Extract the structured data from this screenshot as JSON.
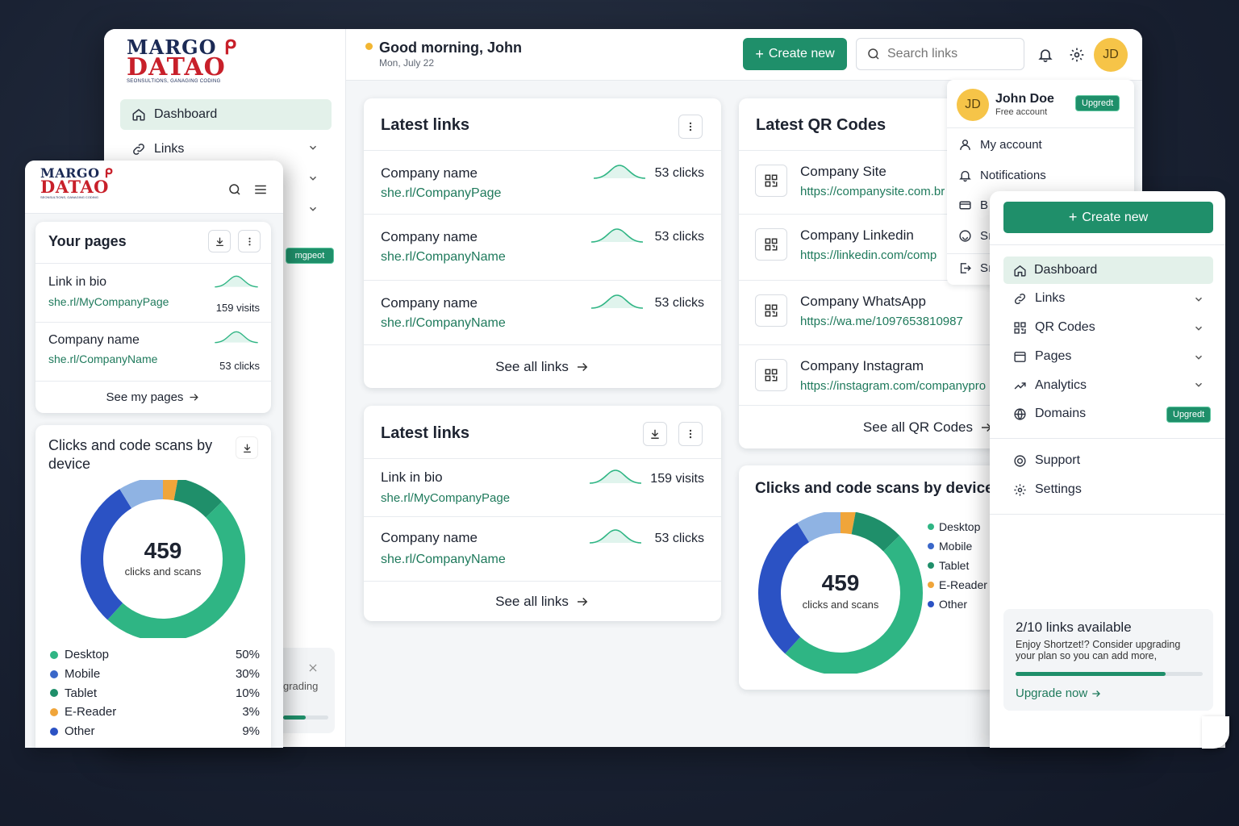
{
  "brand": {
    "logo_line1": "MARGO",
    "logo_line2": "DATAO",
    "logo_sub": "SEONSULTIONS, GANAGING CODING"
  },
  "header": {
    "greeting": "Good morning, John",
    "date": "Mon, July 22",
    "create_new_label": "Create new",
    "search_placeholder": "Search links",
    "avatar_initials": "JD"
  },
  "sidebar": {
    "items": [
      {
        "label": "Dashboard"
      },
      {
        "label": "Links"
      }
    ],
    "upgrade_badge": "mgpeot",
    "partial_text": "grading"
  },
  "profile_menu": {
    "avatar_initials": "JD",
    "name": "John Doe",
    "plan": "Free account",
    "upgrade_label": "Upgredt",
    "items": [
      {
        "label": "My account"
      },
      {
        "label": "Notifications"
      },
      {
        "label": "B"
      },
      {
        "label": "Sı"
      },
      {
        "label": "Sı"
      }
    ]
  },
  "latest_links_1": {
    "title": "Latest links",
    "rows": [
      {
        "name": "Company name",
        "url": "she.rl/CompanyPage",
        "stat": "53 clicks"
      },
      {
        "name": "Company name",
        "url": "she.rl/CompanyName",
        "stat": "53 clicks"
      },
      {
        "name": "Company name",
        "url": "she.rl/CompanyName",
        "stat": "53 clicks"
      }
    ],
    "see_all": "See all links"
  },
  "latest_links_2": {
    "title": "Latest links",
    "rows": [
      {
        "name": "Link in bio",
        "url": "she.rl/MyCompanyPage",
        "stat": "159 visits"
      },
      {
        "name": "Company name",
        "url": "she.rl/CompanyName",
        "stat": "53 clicks"
      }
    ],
    "see_all": "See all links"
  },
  "qr_codes": {
    "title": "Latest QR Codes",
    "rows": [
      {
        "name": "Company Site",
        "url": "https://companysite.com.br"
      },
      {
        "name": "Company Linkedin",
        "url": "https://linkedin.com/comp"
      },
      {
        "name": "Company WhatsApp",
        "url": "https://wa.me/1097653810987"
      },
      {
        "name": "Company Instagram",
        "url": "https://instagram.com/companypro"
      }
    ],
    "see_all": "See all QR Codes"
  },
  "device_chart_main": {
    "title": "Clicks and code scans by device",
    "total": "459",
    "total_label": "clicks and scans"
  },
  "device_chart_mobile": {
    "title": "Clicks and code scans by device",
    "total": "459",
    "total_label": "clicks and scans"
  },
  "chart_data": {
    "type": "pie",
    "categories": [
      "Desktop",
      "Mobile",
      "Tablet",
      "E-Reader",
      "Other"
    ],
    "values": [
      50,
      30,
      10,
      3,
      9
    ],
    "value_labels": [
      "50%",
      "30%",
      "10%",
      "3%",
      "9%"
    ],
    "colors": [
      "#2fb584",
      "#3a67c9",
      "#1f8f6a",
      "#f0a53a",
      "#2b52c4"
    ]
  },
  "mobile_panel": {
    "your_pages_title": "Your pages",
    "pages": [
      {
        "name": "Link in bio",
        "url": "she.rl/MyCompanyPage",
        "stat": "159 visits"
      },
      {
        "name": "Company name",
        "url": "she.rl/CompanyName",
        "stat": "53 clicks"
      }
    ],
    "see_my_pages": "See my pages"
  },
  "right_nav": {
    "create_new_label": "Create new",
    "items": [
      {
        "label": "Dashboard"
      },
      {
        "label": "Links"
      },
      {
        "label": "QR Codes"
      },
      {
        "label": "Pages"
      },
      {
        "label": "Analytics"
      },
      {
        "label": "Domains"
      }
    ],
    "domains_badge": "Upgredt",
    "secondary": [
      {
        "label": "Support"
      },
      {
        "label": "Settings"
      }
    ],
    "quota_title": "2/10 links available",
    "quota_text": "Enjoy Shortzet!? Consider upgrading your plan so you can add more,",
    "quota_progress": 0.8,
    "upgrade_now": "Upgrade now"
  },
  "colors": {
    "accent": "#1f8f6a",
    "accent_light": "#e3f1ea",
    "dark_bg": "#1a2233"
  }
}
